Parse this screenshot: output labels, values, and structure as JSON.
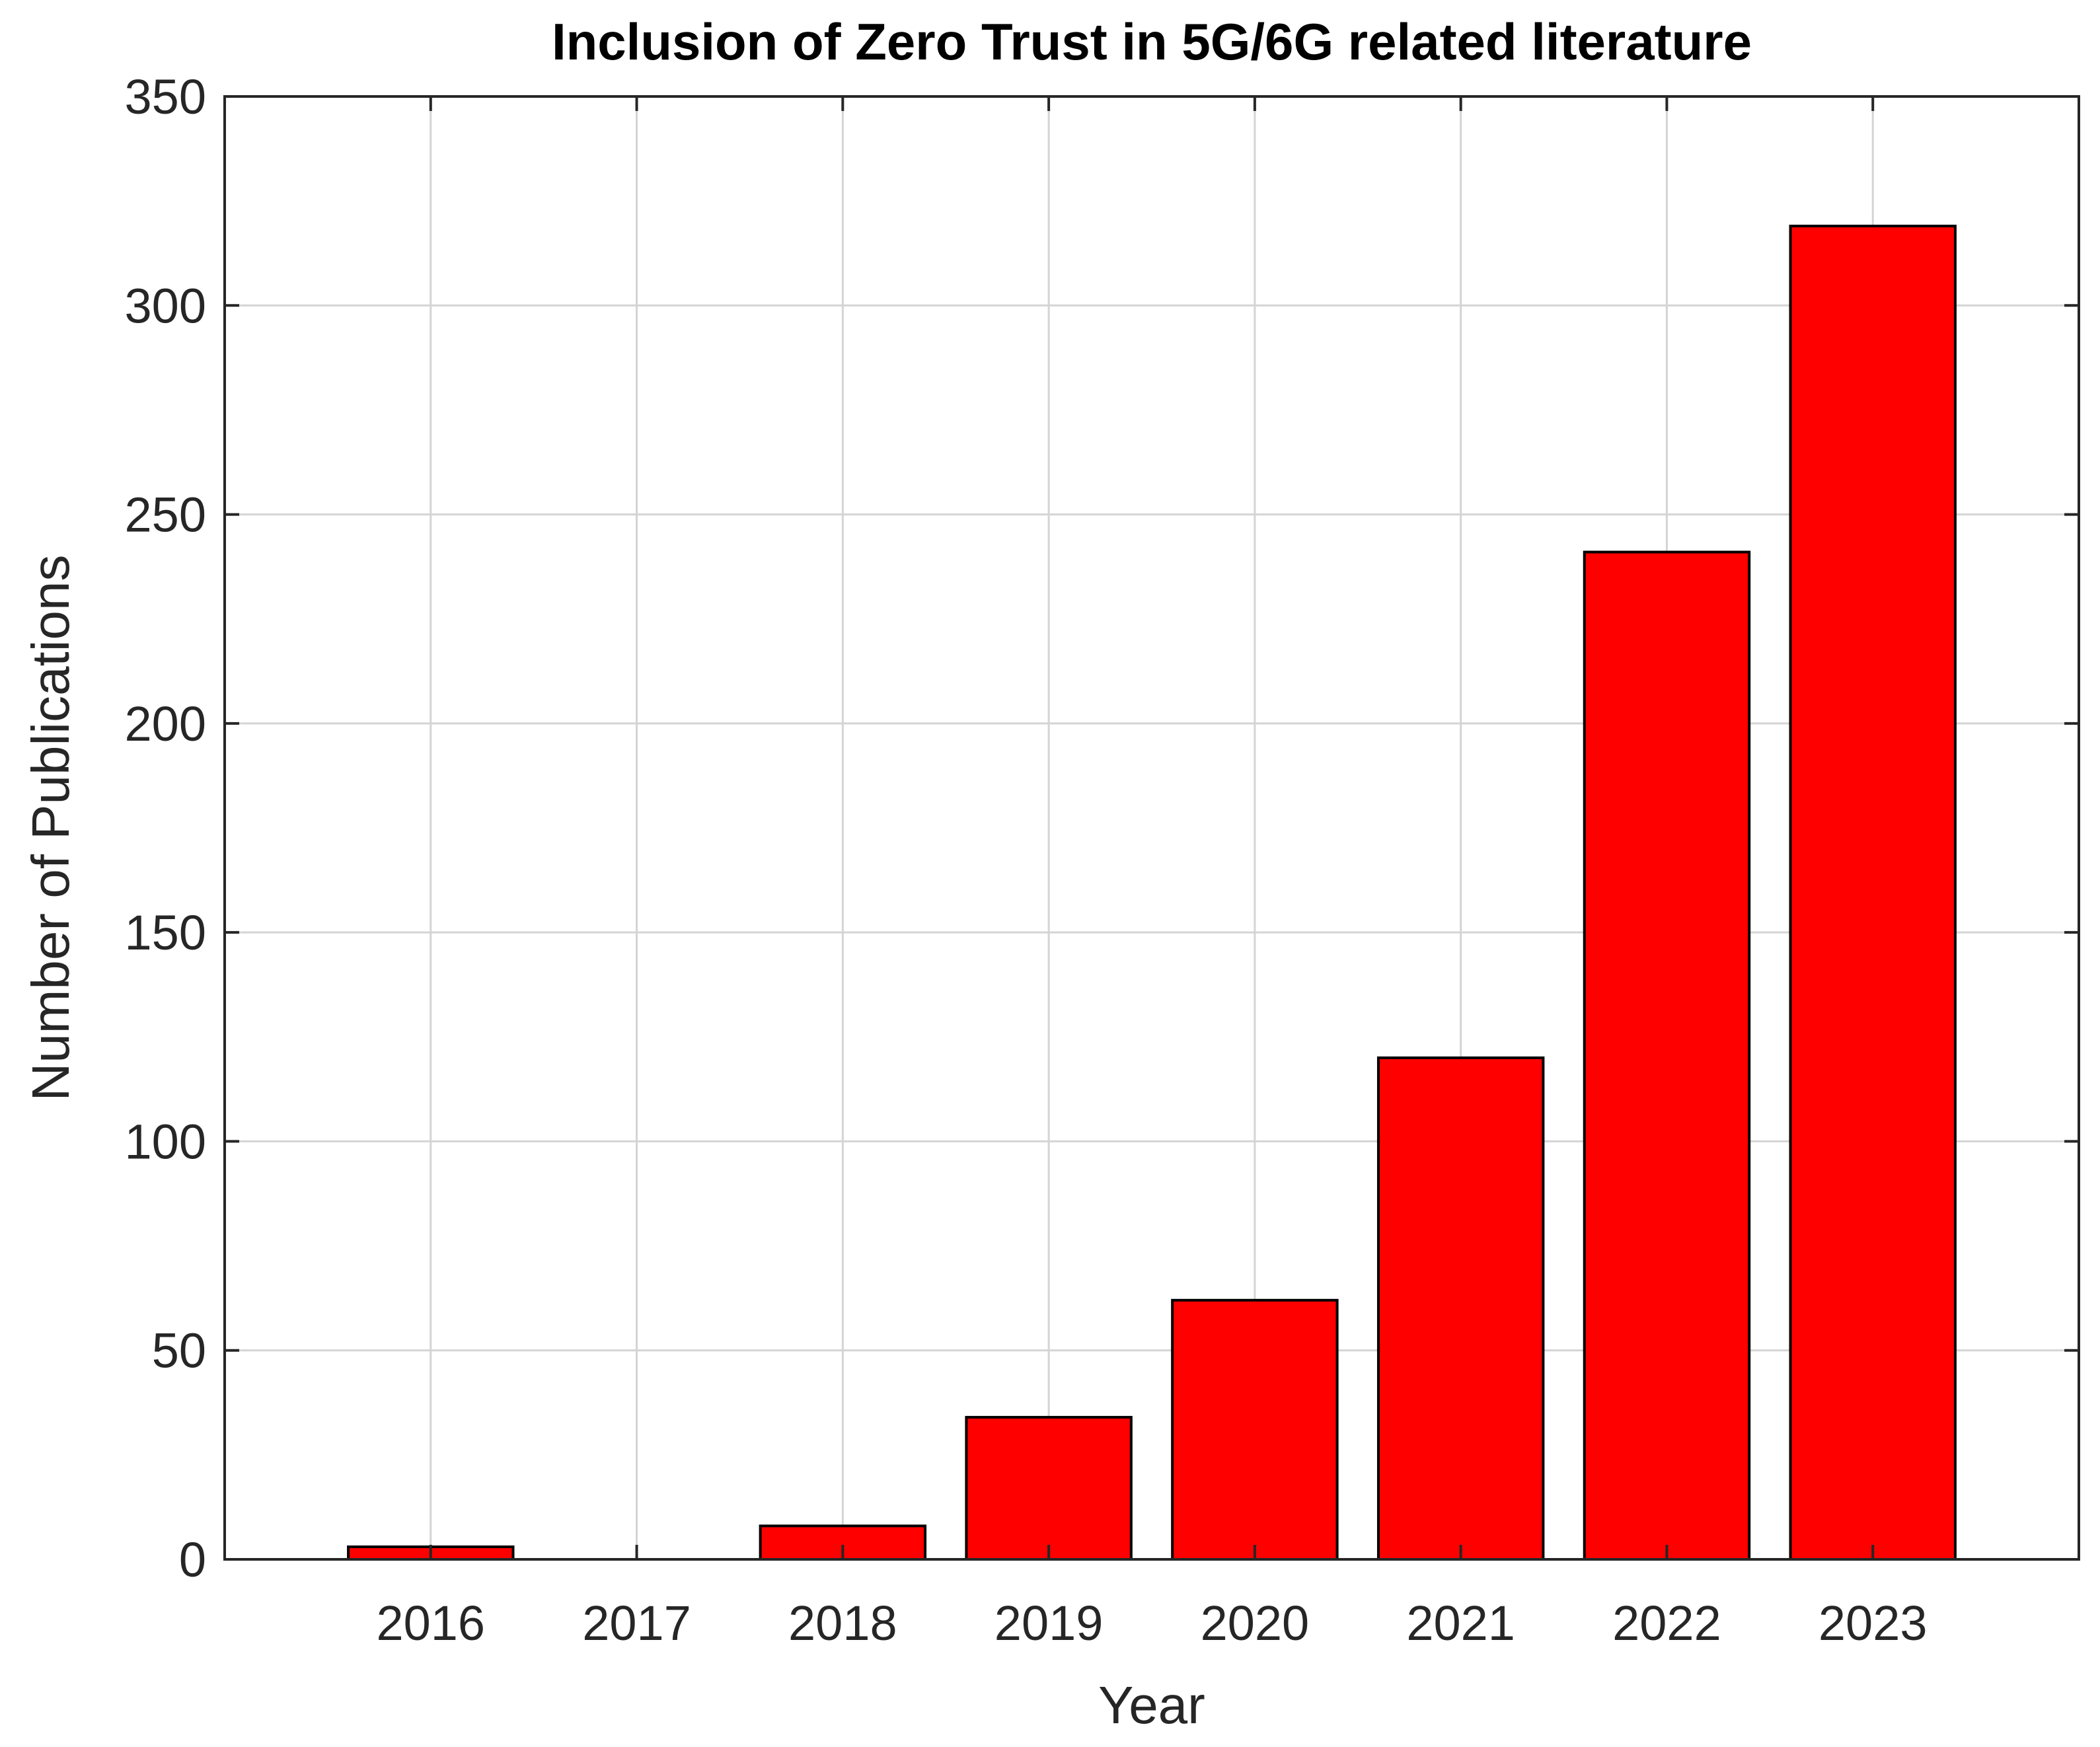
{
  "chart_data": {
    "type": "bar",
    "title": "Inclusion of Zero Trust in 5G/6G related literature",
    "xlabel": "Year",
    "ylabel": "Number of Publications",
    "categories": [
      "2016",
      "2017",
      "2018",
      "2019",
      "2020",
      "2021",
      "2022",
      "2023"
    ],
    "values": [
      3,
      0,
      8,
      34,
      62,
      120,
      241,
      319
    ],
    "ylim": [
      0,
      350
    ],
    "yticks": [
      "0",
      "50",
      "100",
      "150",
      "200",
      "250",
      "300",
      "350"
    ],
    "grid": true,
    "bar_color": "#ff0000",
    "bar_edge_color": "#000000"
  }
}
